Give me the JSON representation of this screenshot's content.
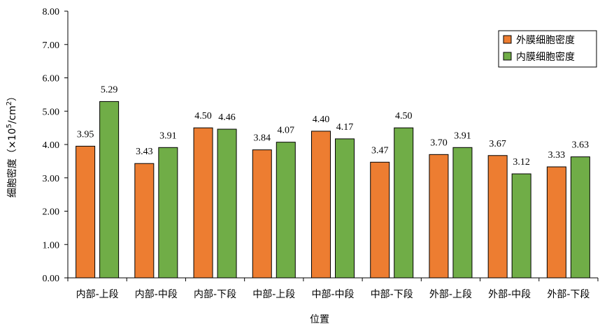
{
  "chart_data": {
    "type": "bar",
    "categories": [
      "内部-上段",
      "内部-中段",
      "内部-下段",
      "中部-上段",
      "中部-中段",
      "中部-下段",
      "外部-上段",
      "外部-中段",
      "外部-下段"
    ],
    "series": [
      {
        "name": "外膜细胞密度",
        "color": "#ED7D31",
        "values": [
          3.95,
          3.43,
          4.5,
          3.84,
          4.4,
          3.47,
          3.7,
          3.67,
          3.33
        ],
        "labels": [
          "3.95",
          "3.43",
          "4.50",
          "3.84",
          "4.40",
          "3.47",
          "3.70",
          "3.67",
          "3.33"
        ]
      },
      {
        "name": "内膜细胞密度",
        "color": "#70AD47",
        "values": [
          5.29,
          3.91,
          4.46,
          4.07,
          4.17,
          4.5,
          3.91,
          3.12,
          3.63
        ],
        "labels": [
          "5.29",
          "3.91",
          "4.46",
          "4.07",
          "4.17",
          "4.50",
          "3.91",
          "3.12",
          "3.63"
        ]
      }
    ],
    "yticks": [
      "0.00",
      "1.00",
      "2.00",
      "3.00",
      "4.00",
      "5.00",
      "6.00",
      "7.00",
      "8.00"
    ],
    "ylim": [
      0,
      8
    ],
    "xlabel": "位置",
    "ylabel_prefix": "细胞密度（×10",
    "ylabel_sup1": "5",
    "ylabel_mid": "/cm",
    "ylabel_sup2": "2",
    "ylabel_suffix": "）",
    "legend_position": "top-right",
    "grid": false
  }
}
